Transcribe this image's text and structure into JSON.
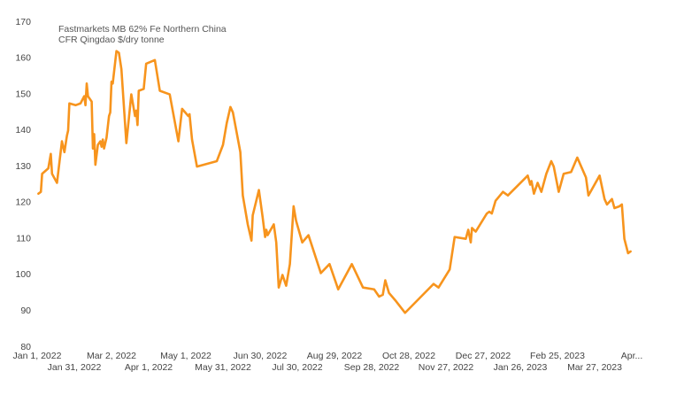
{
  "chart_data": {
    "type": "line",
    "title": [
      "Fastmarkets MB 62% Fe Northern China",
      "CFR Qingdao $/dry tonne"
    ],
    "x": [
      "2022-01-02",
      "2022-01-04",
      "2022-01-05",
      "2022-01-10",
      "2022-01-12",
      "2022-01-13",
      "2022-01-17",
      "2022-01-21",
      "2022-01-23",
      "2022-01-25",
      "2022-01-26",
      "2022-01-27",
      "2022-02-01",
      "2022-02-05",
      "2022-02-08",
      "2022-02-09",
      "2022-02-10",
      "2022-02-11",
      "2022-02-14",
      "2022-02-15",
      "2022-02-16",
      "2022-02-17",
      "2022-02-19",
      "2022-02-21",
      "2022-02-22",
      "2022-02-23",
      "2022-02-24",
      "2022-02-26",
      "2022-02-28",
      "2022-03-01",
      "2022-03-02",
      "2022-03-03",
      "2022-03-06",
      "2022-03-08",
      "2022-03-10",
      "2022-03-14",
      "2022-03-18",
      "2022-03-21",
      "2022-03-22",
      "2022-03-23",
      "2022-03-24",
      "2022-03-28",
      "2022-03-30",
      "2022-04-06",
      "2022-04-10",
      "2022-04-18",
      "2022-04-25",
      "2022-04-28",
      "2022-05-03",
      "2022-05-04",
      "2022-05-06",
      "2022-05-10",
      "2022-05-26",
      "2022-05-31",
      "2022-06-03",
      "2022-06-06",
      "2022-06-08",
      "2022-06-14",
      "2022-06-16",
      "2022-06-20",
      "2022-06-23",
      "2022-06-24",
      "2022-06-29",
      "2022-07-02",
      "2022-07-04",
      "2022-07-05",
      "2022-07-06",
      "2022-07-11",
      "2022-07-13",
      "2022-07-15",
      "2022-07-18",
      "2022-07-21",
      "2022-07-24",
      "2022-07-27",
      "2022-07-29",
      "2022-08-03",
      "2022-08-08",
      "2022-08-18",
      "2022-08-25",
      "2022-09-01",
      "2022-09-12",
      "2022-09-21",
      "2022-09-30",
      "2022-10-04",
      "2022-10-07",
      "2022-10-09",
      "2022-10-12",
      "2022-10-17",
      "2022-10-25",
      "2022-11-17",
      "2022-11-21",
      "2022-11-30",
      "2022-12-04",
      "2022-12-13",
      "2022-12-15",
      "2022-12-17",
      "2022-12-18",
      "2022-12-21",
      "2022-12-30",
      "2023-01-01",
      "2023-01-03",
      "2023-01-06",
      "2023-01-12",
      "2023-01-16",
      "2023-02-01",
      "2023-02-03",
      "2023-02-04",
      "2023-02-06",
      "2023-02-09",
      "2023-02-12",
      "2023-02-16",
      "2023-02-20",
      "2023-02-22",
      "2023-02-26",
      "2023-03-02",
      "2023-03-08",
      "2023-03-13",
      "2023-03-20",
      "2023-03-22",
      "2023-03-31",
      "2023-04-04",
      "2023-04-06",
      "2023-04-10",
      "2023-04-12",
      "2023-04-16",
      "2023-04-18",
      "2023-04-20",
      "2023-04-23",
      "2023-04-25"
    ],
    "series": [
      {
        "color": "#f7941d",
        "values": [
          122.5,
          123,
          128,
          129.5,
          133.5,
          128,
          125.5,
          137,
          134,
          138.5,
          140,
          147.5,
          147,
          147.5,
          149.5,
          147,
          153,
          149.5,
          148,
          135,
          139,
          130.5,
          136,
          137,
          135.5,
          137.5,
          135,
          138,
          144,
          145,
          153.5,
          153,
          162,
          161.5,
          157,
          136.5,
          150,
          144,
          145.5,
          141.5,
          151,
          151.5,
          158.5,
          159.5,
          151,
          150,
          137,
          146,
          144,
          144.5,
          137.5,
          130,
          131.5,
          136,
          142,
          146.5,
          145,
          134,
          122,
          114,
          109.5,
          116.5,
          123.5,
          116,
          110.5,
          112.5,
          111,
          114,
          109,
          96.5,
          100,
          97,
          103,
          119,
          115,
          109,
          111,
          100.5,
          103,
          96,
          103,
          96.5,
          96,
          94,
          94.5,
          98.5,
          95,
          93,
          89.5,
          97.5,
          96.5,
          101.5,
          110.5,
          110,
          112.5,
          109,
          113,
          112,
          117,
          117.5,
          117,
          120.5,
          123,
          122,
          127.5,
          125,
          126,
          122.5,
          125.5,
          123,
          128,
          131.5,
          130,
          123,
          128,
          128.5,
          132.5,
          127,
          122,
          127.5,
          121,
          119.5,
          121,
          118.5,
          119,
          119.5,
          110,
          106,
          106.5
        ]
      }
    ],
    "xlim": [
      "2022-01-01",
      "2023-04-30"
    ],
    "xticks": [
      {
        "value": "2022-01-01",
        "label": "Jan 1, 2022"
      },
      {
        "value": "2022-01-31",
        "label": "Jan 31, 2022"
      },
      {
        "value": "2022-03-02",
        "label": "Mar 2, 2022"
      },
      {
        "value": "2022-04-01",
        "label": "Apr 1, 2022"
      },
      {
        "value": "2022-05-01",
        "label": "May 1, 2022"
      },
      {
        "value": "2022-05-31",
        "label": "May 31, 2022"
      },
      {
        "value": "2022-06-30",
        "label": "Jun 30, 2022"
      },
      {
        "value": "2022-07-30",
        "label": "Jul 30, 2022"
      },
      {
        "value": "2022-08-29",
        "label": "Aug 29, 2022"
      },
      {
        "value": "2022-09-28",
        "label": "Sep 28, 2022"
      },
      {
        "value": "2022-10-28",
        "label": "Oct 28, 2022"
      },
      {
        "value": "2022-11-27",
        "label": "Nov 27, 2022"
      },
      {
        "value": "2022-12-27",
        "label": "Dec 27, 2022"
      },
      {
        "value": "2023-01-26",
        "label": "Jan 26, 2023"
      },
      {
        "value": "2023-02-25",
        "label": "Feb 25, 2023"
      },
      {
        "value": "2023-03-27",
        "label": "Mar 27, 2023"
      },
      {
        "value": "2023-04-26",
        "label": "Apr..."
      }
    ],
    "ylim": [
      80,
      170
    ],
    "yticks": [
      80,
      90,
      100,
      110,
      120,
      130,
      140,
      150,
      160,
      170
    ],
    "grid": false
  }
}
